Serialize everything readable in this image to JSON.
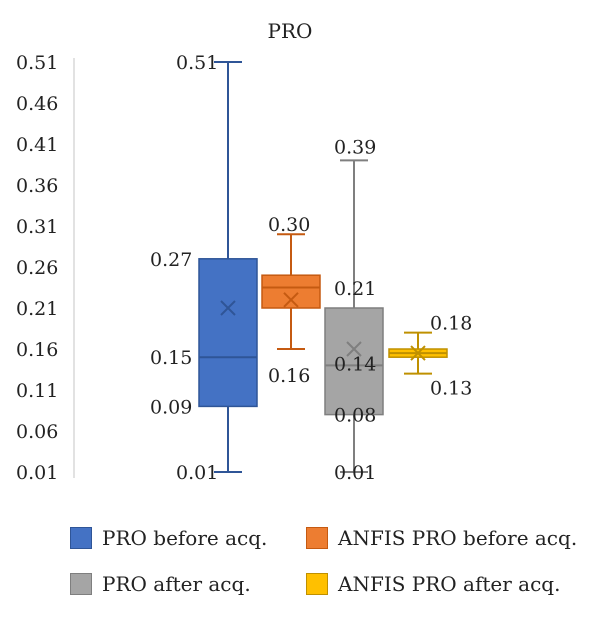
{
  "chart_data": {
    "type": "boxplot",
    "title": "PRO",
    "xlabel": "",
    "ylabel": "",
    "ylim": [
      0.01,
      0.51
    ],
    "yticks": [
      "0.51",
      "0.46",
      "0.41",
      "0.36",
      "0.31",
      "0.26",
      "0.21",
      "0.16",
      "0.11",
      "0.06",
      "0.01"
    ],
    "grid": false,
    "legend_position": "bottom",
    "series": [
      {
        "name": "PRO before acq.",
        "color": "#4472C4",
        "edge": "#2F5597",
        "min": 0.01,
        "q1": 0.09,
        "median": 0.15,
        "q3": 0.27,
        "max": 0.51,
        "mean": 0.21,
        "labels": [
          {
            "text": "0.51",
            "value": 0.51
          },
          {
            "text": "0.27",
            "value": 0.27
          },
          {
            "text": "0.15",
            "value": 0.15
          },
          {
            "text": "0.09",
            "value": 0.09
          },
          {
            "text": "0.01",
            "value": 0.01
          }
        ]
      },
      {
        "name": "ANFIS PRO before acq.",
        "color": "#ED7D31",
        "edge": "#C55A11",
        "min": 0.16,
        "q1": 0.21,
        "median": 0.235,
        "q3": 0.25,
        "max": 0.3,
        "mean": 0.22,
        "labels": [
          {
            "text": "0.30",
            "value": 0.3
          },
          {
            "text": "0.16",
            "value": 0.16
          }
        ]
      },
      {
        "name": "PRO after acq.",
        "color": "#A5A5A5",
        "edge": "#7F7F7F",
        "min": 0.01,
        "q1": 0.08,
        "median": 0.14,
        "q3": 0.21,
        "max": 0.39,
        "mean": 0.16,
        "labels": [
          {
            "text": "0.39",
            "value": 0.39
          },
          {
            "text": "0.21",
            "value": 0.21
          },
          {
            "text": "0.14",
            "value": 0.14
          },
          {
            "text": "0.08",
            "value": 0.08
          },
          {
            "text": "0.01",
            "value": 0.01
          }
        ]
      },
      {
        "name": "ANFIS PRO after acq.",
        "color": "#FFC000",
        "edge": "#BF9000",
        "min": 0.13,
        "q1": 0.15,
        "median": 0.155,
        "q3": 0.16,
        "max": 0.18,
        "mean": 0.155,
        "labels": [
          {
            "text": "0.18",
            "value": 0.18
          },
          {
            "text": "0.13",
            "value": 0.13
          }
        ]
      }
    ]
  }
}
